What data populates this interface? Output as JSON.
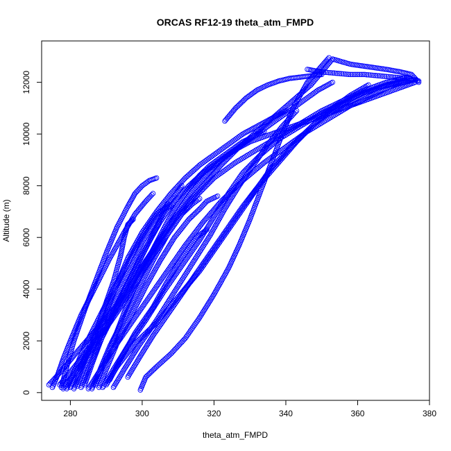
{
  "chart_data": {
    "type": "scatter",
    "title": "ORCAS RF12-19 theta_atm_FMPD",
    "xlabel": "theta_atm_FMPD",
    "ylabel": "Altitude (m)",
    "xlim": [
      272,
      380
    ],
    "ylim": [
      -300,
      13600
    ],
    "x_ticks": [
      280,
      300,
      320,
      340,
      360,
      380
    ],
    "y_ticks": [
      0,
      2000,
      4000,
      6000,
      8000,
      10000,
      12000
    ],
    "marker": "open-circle",
    "color": "#0000ff",
    "grid": false,
    "legend": "none",
    "series": [
      {
        "x": [
          274.0,
          276.0,
          278.5,
          282.0,
          287.0,
          292.5,
          297.0,
          301.0,
          305.0,
          309.0,
          313.0,
          317.5,
          322.0,
          327.0,
          332.0,
          337.0,
          342.0,
          347.0,
          353.0
        ],
        "y": [
          300,
          600,
          1000,
          1600,
          2400,
          3300,
          4200,
          5100,
          5900,
          6700,
          7400,
          8100,
          8800,
          9500,
          10100,
          10700,
          11300,
          11900,
          12900
        ]
      },
      {
        "x": [
          299.5,
          301.0,
          304.0,
          308.0,
          312.0,
          316.0,
          320.0,
          324.0,
          327.0,
          330.0,
          333.0,
          336.0,
          339.0,
          342.0,
          346.0,
          352.0
        ],
        "y": [
          100,
          600,
          1000,
          1500,
          2100,
          2900,
          3800,
          4800,
          5700,
          6700,
          7800,
          8900,
          10000,
          11000,
          12000,
          12950
        ]
      },
      {
        "x": [
          353.0,
          358.0,
          363.0,
          368.0,
          372.0,
          375.0,
          377.0
        ],
        "y": [
          12900,
          12700,
          12600,
          12500,
          12400,
          12300,
          12000
        ]
      },
      {
        "x": [
          346.0,
          350.0,
          354.0,
          358.0,
          362.0,
          366.0,
          370.0,
          374.0,
          377.0
        ],
        "y": [
          12500,
          12400,
          12350,
          12300,
          12300,
          12250,
          12200,
          12150,
          12050
        ]
      },
      {
        "x": [
          277.0,
          280.0,
          284.0,
          289.0,
          294.0,
          298.0,
          302.0,
          306.0,
          310.0,
          314.0,
          318.0,
          322.0,
          326.0,
          330.0,
          336.0,
          342.0,
          348.0,
          354.0,
          360.0,
          366.0,
          372.0,
          376.0
        ],
        "y": [
          300,
          800,
          1500,
          2400,
          3400,
          4400,
          5300,
          6200,
          7000,
          7800,
          8400,
          9000,
          9400,
          9700,
          10000,
          10300,
          10600,
          10900,
          11200,
          11500,
          11800,
          12000
        ]
      },
      {
        "x": [
          278.0,
          281.0,
          285.0,
          290.0,
          295.0,
          299.0,
          303.0,
          307.0,
          311.0,
          315.0,
          320.0,
          326.0,
          332.0,
          338.0,
          344.0,
          350.0,
          356.0,
          362.0,
          368.0,
          374.0
        ],
        "y": [
          150,
          700,
          1500,
          2500,
          3500,
          4400,
          5300,
          6100,
          6900,
          7600,
          8300,
          8900,
          9400,
          9900,
          10400,
          10900,
          11300,
          11700,
          12000,
          12200
        ]
      },
      {
        "x": [
          285.0,
          288.0,
          292.0,
          297.0,
          302.0,
          307.0,
          312.0,
          317.0,
          322.0,
          328.0,
          334.0,
          340.0,
          346.0,
          352.0,
          358.0,
          364.0,
          370.0,
          376.0
        ],
        "y": [
          150,
          800,
          1700,
          2700,
          3700,
          4700,
          5700,
          6600,
          7400,
          8200,
          8900,
          9500,
          10100,
          10600,
          11100,
          11500,
          11900,
          12100
        ]
      },
      {
        "x": [
          289.0,
          292.0,
          296.0,
          301.0,
          306.0,
          311.0,
          316.0,
          320.0,
          324.0,
          328.0,
          333.0,
          338.0,
          344.0,
          350.0,
          356.0,
          362.0,
          368.0,
          374.0
        ],
        "y": [
          200,
          900,
          1800,
          2800,
          3900,
          4900,
          5900,
          6800,
          7700,
          8500,
          9200,
          9800,
          10300,
          10800,
          11200,
          11600,
          11900,
          12100
        ]
      },
      {
        "x": [
          290.0,
          293.0,
          298.0,
          304.0,
          310.0,
          316.0,
          321.0,
          326.0,
          331.0,
          336.0,
          342.0,
          348.0,
          354.0,
          360.0,
          366.0,
          372.0
        ],
        "y": [
          300,
          1000,
          1900,
          2700,
          3700,
          4700,
          5700,
          6700,
          7700,
          8700,
          9600,
          10400,
          11000,
          11500,
          11800,
          12000
        ]
      },
      {
        "x": [
          280.0,
          282.0,
          285.0,
          289.0,
          293.0,
          297.0,
          300.0,
          303.0,
          306.0,
          309.0,
          311.0
        ],
        "y": [
          200,
          700,
          1600,
          2700,
          3800,
          4900,
          5800,
          6500,
          7100,
          7600,
          8000
        ]
      },
      {
        "x": [
          283.0,
          285.0,
          288.0,
          292.0,
          296.0,
          300.0,
          304.0,
          307.0
        ],
        "y": [
          200,
          900,
          1900,
          3000,
          4200,
          5300,
          6400,
          7300
        ]
      },
      {
        "x": [
          286.0,
          288.0,
          291.0,
          295.0,
          299.0,
          303.0,
          307.0,
          311.0,
          314.0,
          316.0
        ],
        "y": [
          150,
          800,
          1800,
          2900,
          4000,
          5100,
          6100,
          6900,
          7300,
          7500
        ]
      },
      {
        "x": [
          288.0,
          290.0,
          293.0,
          297.0,
          301.0,
          305.0,
          309.0,
          313.0,
          316.0,
          318.0,
          321.0
        ],
        "y": [
          200,
          900,
          1900,
          3000,
          4100,
          5100,
          6000,
          6700,
          7100,
          7400,
          7600
        ]
      },
      {
        "x": [
          279.0,
          281.0,
          284.0,
          288.0,
          292.0,
          296.0,
          299.0,
          302.0,
          304.0,
          306.0,
          308.0
        ],
        "y": [
          150,
          800,
          1800,
          2900,
          4000,
          5000,
          5800,
          6500,
          6900,
          7100,
          7200
        ]
      },
      {
        "x": [
          291.0,
          294.0,
          298.0,
          303.0,
          307.0,
          311.0,
          315.0,
          318.0
        ],
        "y": [
          500,
          1300,
          2300,
          3300,
          4300,
          5200,
          6000,
          6300
        ]
      },
      {
        "x": [
          281.0,
          283.0,
          286.0,
          289.0,
          292.0,
          294.0,
          295.0,
          296.0,
          297.5
        ],
        "y": [
          150,
          900,
          1900,
          3100,
          4300,
          5300,
          6000,
          6500,
          6700
        ]
      },
      {
        "x": [
          284.0,
          286.0,
          289.0,
          293.0,
          297.0,
          301.0,
          305.0,
          309.0,
          313.0,
          317.0,
          321.0,
          325.0,
          329.0,
          333.0,
          337.0,
          341.0,
          345.0,
          349.0,
          353.0
        ],
        "y": [
          300,
          1100,
          2200,
          3400,
          4500,
          5600,
          6600,
          7400,
          8000,
          8500,
          8900,
          9300,
          9700,
          10100,
          10500,
          10900,
          11300,
          11700,
          12000
        ]
      },
      {
        "x": [
          287.0,
          289.0,
          292.0,
          295.0,
          298.0,
          301.0,
          304.0,
          307.0,
          310.0,
          313.0,
          316.0,
          319.0,
          322.0,
          325.0,
          328.0,
          331.0,
          334.0
        ],
        "y": [
          300,
          1000,
          2000,
          3100,
          4100,
          5000,
          5800,
          6600,
          7300,
          7900,
          8400,
          8800,
          9100,
          9400,
          9700,
          9900,
          10100
        ]
      },
      {
        "x": [
          277.5,
          279.0,
          281.0,
          284.0,
          287.0,
          290.0,
          293.0,
          296.0,
          298.0,
          300.0,
          302.0,
          304.0
        ],
        "y": [
          200,
          1000,
          2000,
          3200,
          4300,
          5400,
          6400,
          7200,
          7700,
          8000,
          8200,
          8300
        ]
      },
      {
        "x": [
          282.0,
          284.0,
          287.0,
          290.0,
          293.0,
          296.0,
          300.0,
          304.0,
          308.0,
          312.0,
          316.0,
          320.0,
          324.0,
          328.0,
          332.0,
          336.0,
          340.0
        ],
        "y": [
          250,
          1000,
          2000,
          3100,
          4200,
          5200,
          6200,
          7000,
          7700,
          8300,
          8800,
          9200,
          9600,
          10000,
          10300,
          10600,
          10900
        ]
      },
      {
        "x": [
          292.0,
          295.0,
          299.0,
          304.0,
          309.0,
          314.0,
          319.0,
          323.0,
          327.0,
          331.0,
          335.0,
          339.0,
          343.0
        ],
        "y": [
          200,
          900,
          1800,
          2800,
          3900,
          5000,
          6100,
          7100,
          8000,
          8800,
          9600,
          10300,
          10900
        ]
      },
      {
        "x": [
          296.0,
          299.0,
          303.0,
          308.0,
          313.0,
          318.0,
          323.0,
          328.0,
          333.0,
          338.0,
          343.0,
          348.0,
          353.0,
          358.0,
          363.0
        ],
        "y": [
          600,
          1300,
          2200,
          3200,
          4200,
          5200,
          6200,
          7200,
          8100,
          8900,
          9700,
          10400,
          11000,
          11500,
          11900
        ]
      },
      {
        "x": [
          275.0,
          276.5,
          278.0,
          280.0,
          283.0,
          287.0,
          291.0,
          295.0,
          298.0,
          301.0,
          303.0
        ],
        "y": [
          200,
          700,
          1300,
          2000,
          3000,
          4100,
          5200,
          6200,
          6900,
          7400,
          7700
        ]
      },
      {
        "x": [
          323.0,
          326.0,
          329.0,
          332.0,
          335.0,
          338.0,
          341.0,
          344.0,
          347.0,
          350.0
        ],
        "y": [
          10500,
          11000,
          11400,
          11700,
          11900,
          12050,
          12150,
          12200,
          12250,
          12300
        ]
      }
    ]
  }
}
